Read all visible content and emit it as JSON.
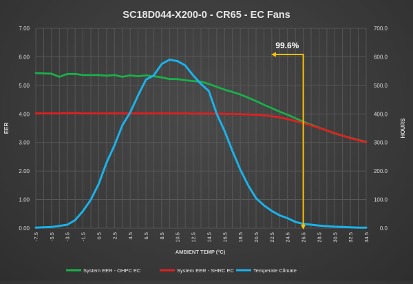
{
  "chart_data": {
    "type": "line",
    "title": "SC18D044-X200-0 - CR65 - EC Fans",
    "xlabel": "AMBIENT TEMP (°C)",
    "ylabel": "EER",
    "y2label": "HOURS",
    "x": [
      -7.5,
      -6.5,
      -5.5,
      -4.5,
      -3.5,
      -2.5,
      -1.5,
      -0.5,
      0.5,
      1.5,
      2.5,
      3.5,
      4.5,
      5.5,
      6.5,
      7.5,
      8.5,
      9.5,
      10.5,
      11.5,
      12.5,
      13.5,
      14.5,
      15.5,
      16.5,
      17.5,
      18.5,
      19.5,
      20.5,
      21.5,
      22.5,
      23.5,
      24.5,
      25.5,
      26.5,
      27.5,
      28.5,
      29.5,
      30.5,
      31.5,
      32.5,
      33.5,
      34.5
    ],
    "x_tick_labels": [
      "-7.5",
      "-5.5",
      "-3.5",
      "-1.5",
      "0.5",
      "2.5",
      "4.5",
      "6.5",
      "8.5",
      "10.5",
      "12.5",
      "14.5",
      "16.5",
      "18.5",
      "20.5",
      "22.5",
      "24.5",
      "26.5",
      "28.5",
      "30.5",
      "32.5",
      "34.5"
    ],
    "ylim": [
      0,
      7
    ],
    "y_ticks": [
      "0.00",
      "1.00",
      "2.00",
      "3.00",
      "4.00",
      "5.00",
      "6.00",
      "7.00"
    ],
    "y2lim": [
      0,
      700
    ],
    "y2_ticks": [
      "0.0",
      "100.0",
      "200.0",
      "300.0",
      "400.0",
      "500.0",
      "600.0",
      "700.0"
    ],
    "series": [
      {
        "name": "System EER - OHPC EC",
        "axis": "left",
        "color": "#19b04a",
        "values": [
          5.43,
          5.42,
          5.41,
          5.3,
          5.4,
          5.4,
          5.36,
          5.36,
          5.36,
          5.34,
          5.36,
          5.3,
          5.35,
          5.32,
          5.35,
          5.32,
          5.28,
          5.22,
          5.22,
          5.18,
          5.15,
          5.13,
          5.05,
          4.95,
          4.85,
          4.77,
          4.68,
          4.57,
          4.45,
          4.32,
          4.2,
          4.08,
          3.97,
          3.85,
          3.73,
          3.62,
          3.52,
          3.42,
          3.32,
          3.24,
          3.16,
          3.09,
          3.02
        ]
      },
      {
        "name": "System EER - SHRC EC",
        "axis": "left",
        "color": "#e02020",
        "values": [
          4.02,
          4.02,
          4.02,
          4.02,
          4.03,
          4.03,
          4.02,
          4.02,
          4.02,
          4.02,
          4.02,
          4.02,
          4.02,
          4.02,
          4.02,
          4.02,
          4.02,
          4.02,
          4.02,
          4.02,
          4.01,
          4.01,
          4.01,
          4.01,
          4.0,
          4.0,
          3.99,
          3.98,
          3.97,
          3.95,
          3.92,
          3.88,
          3.82,
          3.75,
          3.68,
          3.6,
          3.51,
          3.42,
          3.33,
          3.24,
          3.15,
          3.08,
          3.01
        ]
      },
      {
        "name": "Temperate Climate",
        "axis": "right",
        "color": "#1ab2ea",
        "values": [
          2,
          3,
          4,
          8,
          12,
          28,
          60,
          100,
          155,
          230,
          290,
          360,
          405,
          465,
          520,
          535,
          575,
          590,
          585,
          570,
          535,
          505,
          480,
          400,
          340,
          270,
          205,
          150,
          105,
          80,
          60,
          45,
          35,
          22,
          15,
          12,
          9,
          7,
          5,
          4,
          3,
          2,
          2
        ]
      }
    ],
    "annotation": {
      "label": "99.6%",
      "x": 26.5,
      "color": "#ffc000"
    },
    "legend_position": "bottom"
  }
}
